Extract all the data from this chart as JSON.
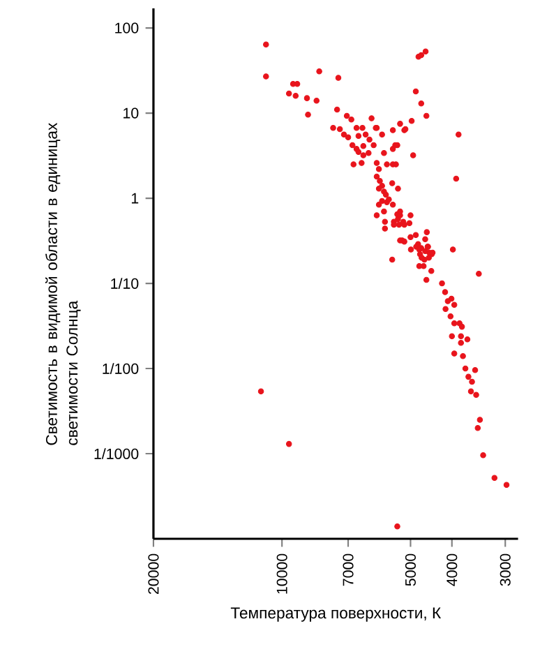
{
  "chart_data": {
    "type": "scatter",
    "xlabel": "Температура поверхности, К",
    "ylabel": "Светимость в видимой области в единицах светимости Солнца",
    "log": "xy",
    "xlim": [
      20000,
      2800
    ],
    "ylim": [
      0.0001,
      170
    ],
    "xticks": [
      20000,
      10000,
      7000,
      5000,
      4000,
      3000
    ],
    "yticks": [
      100,
      10,
      1,
      {
        "value": 0.1,
        "label": "1/10"
      },
      {
        "value": 0.01,
        "label": "1/100"
      },
      {
        "value": 0.001,
        "label": "1/1000"
      }
    ],
    "color": "#e8141c",
    "x": [
      10900,
      10900,
      8180,
      7380,
      9420,
      9210,
      9630,
      9290,
      8740,
      8300,
      8690,
      7430,
      7050,
      6880,
      7590,
      7320,
      7160,
      7000,
      6690,
      6480,
      6170,
      6000,
      5500,
      5290,
      5170,
      6620,
      6370,
      6240,
      6840,
      6690,
      6450,
      6100,
      5830,
      6620,
      6270,
      6450,
      5770,
      5430,
      5500,
      6800,
      6510,
      6000,
      5680,
      5500,
      5930,
      6000,
      5900,
      5830,
      5930,
      5770,
      5520,
      5710,
      5830,
      5680,
      5930,
      5500,
      5770,
      6000,
      5370,
      5290,
      5470,
      5740,
      5320,
      5170,
      5740,
      5230,
      5520,
      4790,
      4720,
      4610,
      4860,
      4720,
      4590,
      4970,
      5140,
      6030,
      3860,
      3910,
      4930,
      5370,
      5410,
      5350,
      5620,
      5290,
      5000,
      5350,
      5200,
      5030,
      5470,
      4580,
      4860,
      4620,
      5000,
      5290,
      5170,
      4800,
      4720,
      4560,
      4460,
      4520,
      4750,
      4990,
      4640,
      3980,
      4850,
      4770,
      4620,
      4550,
      4440,
      4710,
      4530,
      4770,
      4660,
      4470,
      4590,
      3460,
      4220,
      4150,
      4090,
      4140,
      4010,
      3950,
      4030,
      3950,
      3840,
      3790,
      4000,
      3810,
      3680,
      3810,
      3950,
      3770,
      3720,
      3530,
      3660,
      3590,
      3610,
      3510,
      3440,
      3480,
      3380,
      3180,
      2980,
      5370,
      11200,
      9630
    ],
    "values": [
      64,
      27,
      31,
      26,
      22,
      22,
      17,
      16,
      15,
      14,
      9.6,
      11,
      9.3,
      8.4,
      6.7,
      6.5,
      5.6,
      5.2,
      6.7,
      6.7,
      8.7,
      6.7,
      6.3,
      7.5,
      6.3,
      5.4,
      5.6,
      4.9,
      4.2,
      3.8,
      4.1,
      4.2,
      5.6,
      3.5,
      3.4,
      3.2,
      3.4,
      4.2,
      3.8,
      2.5,
      2.6,
      2.6,
      2.5,
      2.5,
      2.2,
      1.8,
      1.6,
      1.4,
      1.3,
      1.2,
      1.5,
      1.1,
      0.93,
      0.9,
      0.84,
      0.84,
      0.7,
      0.63,
      0.65,
      0.63,
      0.53,
      0.53,
      0.49,
      0.49,
      0.44,
      0.32,
      0.19,
      46,
      48,
      53,
      18,
      13,
      9.3,
      8.1,
      6.5,
      6.7,
      5.6,
      1.7,
      3.2,
      4.2,
      2.5,
      1.3,
      0.97,
      0.7,
      0.63,
      0.57,
      0.53,
      0.51,
      0.49,
      0.4,
      0.37,
      0.33,
      0.35,
      0.32,
      0.31,
      0.29,
      0.26,
      0.27,
      0.22,
      0.23,
      0.22,
      0.25,
      0.19,
      0.25,
      0.27,
      0.25,
      0.24,
      0.27,
      0.23,
      0.2,
      0.2,
      0.16,
      0.16,
      0.14,
      0.11,
      0.13,
      0.1,
      0.079,
      0.062,
      0.05,
      0.066,
      0.056,
      0.041,
      0.034,
      0.034,
      0.031,
      0.024,
      0.024,
      0.022,
      0.02,
      0.015,
      0.014,
      0.01,
      0.0096,
      0.008,
      0.007,
      0.0054,
      0.0049,
      0.0025,
      0.002,
      0.00096,
      0.00052,
      0.00043,
      0.00014,
      0.0054,
      0.0013
    ]
  }
}
